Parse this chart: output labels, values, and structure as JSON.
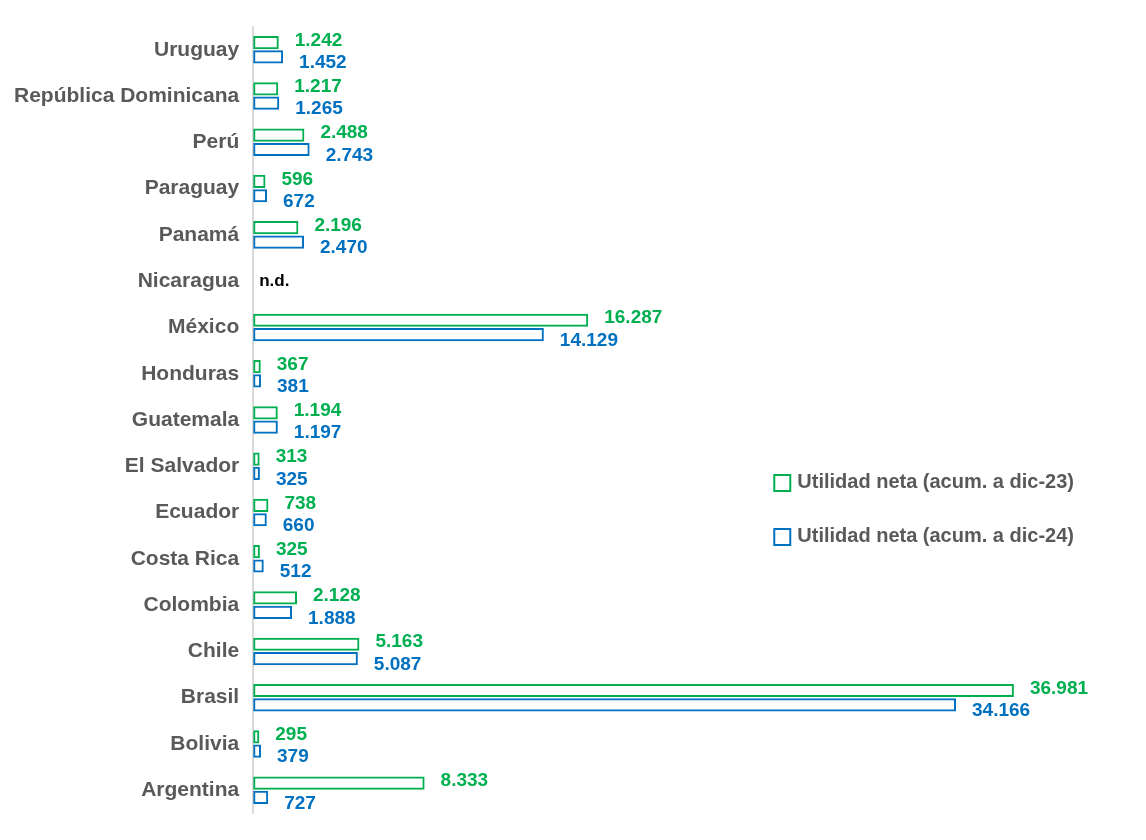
{
  "chart_data": {
    "type": "bar",
    "orientation": "horizontal",
    "categories": [
      "Uruguay",
      "República Dominicana",
      "Perú",
      "Paraguay",
      "Panamá",
      "Nicaragua",
      "México",
      "Honduras",
      "Guatemala",
      "El Salvador",
      "Ecuador",
      "Costa Rica",
      "Colombia",
      "Chile",
      "Brasil",
      "Bolivia",
      "Argentina"
    ],
    "series": [
      {
        "name": "Utilidad neta (acum. a dic-23)",
        "color": "#00b050",
        "values": [
          1242,
          1217,
          2488,
          596,
          2196,
          null,
          16287,
          367,
          1194,
          313,
          738,
          325,
          2128,
          5163,
          36981,
          295,
          8333
        ],
        "value_labels": [
          "1.242",
          "1.217",
          "2.488",
          "596",
          "2.196",
          null,
          "16.287",
          "367",
          "1.194",
          "313",
          "738",
          "325",
          "2.128",
          "5.163",
          "36.981",
          "295",
          "8.333"
        ]
      },
      {
        "name": "Utilidad neta (acum. a dic-24)",
        "color": "#0070c0",
        "values": [
          1452,
          1265,
          2743,
          672,
          2470,
          null,
          14129,
          381,
          1197,
          325,
          660,
          512,
          1888,
          5087,
          34166,
          379,
          727
        ],
        "value_labels": [
          "1.452",
          "1.265",
          "2.743",
          "672",
          "2.470",
          null,
          "14.129",
          "381",
          "1.197",
          "325",
          "660",
          "512",
          "1.888",
          "5.087",
          "34.166",
          "379",
          "727"
        ]
      }
    ],
    "annotations": [
      "n.d."
    ],
    "tick_labels": "y",
    "grid": false,
    "legend": "right"
  }
}
